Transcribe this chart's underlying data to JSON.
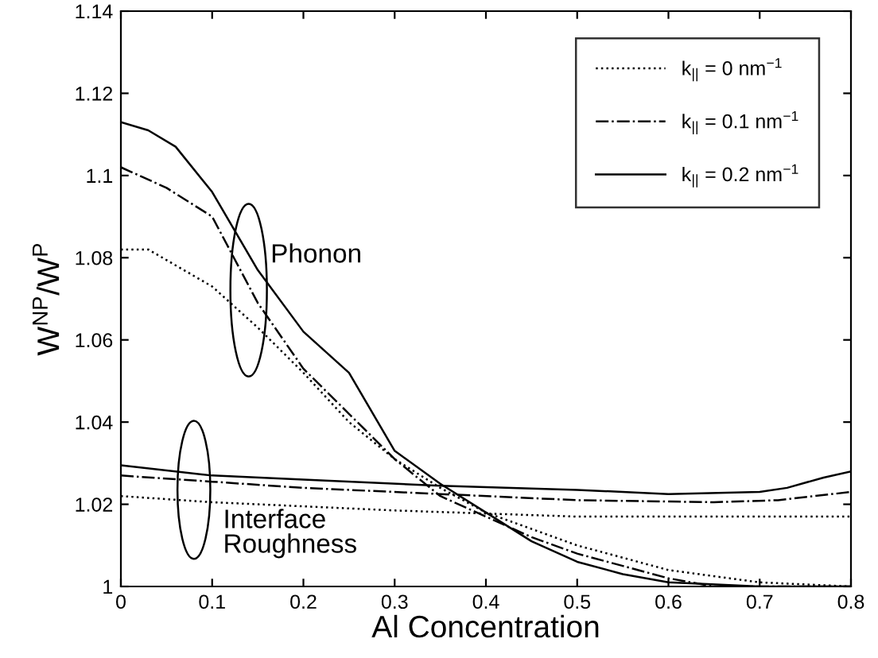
{
  "chart_data": {
    "type": "line",
    "xlabel": "Al Concentration",
    "ylabel": "W$^{NP}$/W$^{P}$",
    "xlim": [
      0,
      0.8
    ],
    "ylim": [
      1,
      1.14
    ],
    "xticks": [
      0,
      0.1,
      0.2,
      0.3,
      0.4,
      0.5,
      0.6,
      0.7,
      0.8
    ],
    "yticks": [
      1,
      1.02,
      1.04,
      1.06,
      1.08,
      1.1,
      1.12,
      1.14
    ],
    "grid": false,
    "legend": "top right",
    "marker": "none",
    "annotations": [
      "Phonon",
      "Interface\nRoughness"
    ],
    "series": [
      {
        "name": "k$_{||}$ = 0 nm$^{−1}$",
        "color": "#000000",
        "line_style": "dotted",
        "x": [
          0,
          0.03,
          0.1,
          0.15,
          0.2,
          0.25,
          0.3,
          0.35,
          0.4,
          0.5,
          0.6,
          0.7,
          0.8
        ],
        "values": [
          1.082,
          1.082,
          1.073,
          1.063,
          1.052,
          1.04,
          1.031,
          1.024,
          1.018,
          1.01,
          1.004,
          1.001,
          1.0
        ]
      },
      {
        "name": "k$_{||}$ = 0.1 nm$^{−1}$",
        "color": "#000000",
        "line_style": "dashdot",
        "x": [
          0,
          0.05,
          0.1,
          0.15,
          0.2,
          0.25,
          0.3,
          0.35,
          0.4,
          0.45,
          0.5,
          0.55,
          0.6,
          0.65,
          0.8
        ],
        "values": [
          1.102,
          1.097,
          1.09,
          1.069,
          1.053,
          1.042,
          1.031,
          1.022,
          1.017,
          1.012,
          1.008,
          1.005,
          1.002,
          1.0,
          1.0
        ]
      },
      {
        "name": "k$_{||}$ = 0.2 nm$^{−1}$",
        "color": "#000000",
        "line_style": "solid",
        "x": [
          0,
          0.03,
          0.06,
          0.1,
          0.15,
          0.2,
          0.25,
          0.3,
          0.35,
          0.4,
          0.45,
          0.5,
          0.55,
          0.6,
          0.7,
          0.8
        ],
        "values": [
          1.113,
          1.111,
          1.107,
          1.096,
          1.077,
          1.062,
          1.052,
          1.033,
          1.025,
          1.018,
          1.011,
          1.006,
          1.003,
          1.001,
          1.0,
          1.0
        ]
      },
      {
        "color": "#000000",
        "line_style": "dotted",
        "x": [
          0,
          0.1,
          0.3,
          0.5,
          0.8
        ],
        "values": [
          1.022,
          1.0205,
          1.0185,
          1.017,
          1.017
        ]
      },
      {
        "color": "#000000",
        "line_style": "dashdot",
        "x": [
          0,
          0.1,
          0.2,
          0.35,
          0.5,
          0.65,
          0.72,
          0.8
        ],
        "values": [
          1.027,
          1.0255,
          1.024,
          1.0225,
          1.021,
          1.0205,
          1.021,
          1.023
        ]
      },
      {
        "color": "#000000",
        "line_style": "solid",
        "x": [
          0,
          0.1,
          0.2,
          0.35,
          0.5,
          0.6,
          0.7,
          0.73,
          0.77,
          0.8
        ],
        "values": [
          1.0295,
          1.027,
          1.026,
          1.0245,
          1.0235,
          1.0225,
          1.023,
          1.024,
          1.0265,
          1.028
        ]
      }
    ]
  }
}
